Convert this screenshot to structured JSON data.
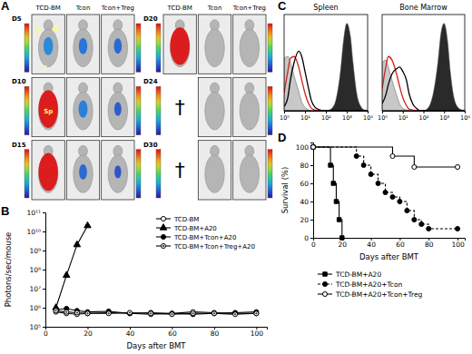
{
  "chart_data": [
    {
      "panel": "A",
      "type": "image_grid",
      "columns": [
        "TCD-BM",
        "Tcon",
        "Tcon+Treg"
      ],
      "color_range": [
        300000,
        50000000
      ],
      "rows": [
        {
          "label": "D5",
          "cells": [
            {
              "value": 1000000,
              "labels": [
                "S",
                "H",
                "F"
              ]
            },
            {
              "value": 800000
            },
            {
              "value": 700000
            }
          ]
        },
        {
          "label": "D10",
          "cells": [
            {
              "value": 50000000,
              "labels": [
                "Sp"
              ]
            },
            {
              "value": 900000
            },
            {
              "value": 600000
            }
          ]
        },
        {
          "label": "D15",
          "cells": [
            {
              "value": 2000000000
            },
            {
              "value": 700000
            },
            {
              "value": 550000
            }
          ]
        },
        {
          "label": "D20",
          "cells": [
            {
              "value": 20000000000
            },
            {
              "value": 300000
            },
            {
              "value": 300000
            }
          ]
        },
        {
          "label": "D24",
          "cells": [
            {
              "value": null,
              "label": "†"
            },
            {
              "value": 300000
            },
            {
              "value": 300000
            }
          ]
        },
        {
          "label": "D30",
          "cells": [
            {
              "value": null,
              "label": "†"
            },
            {
              "value": 300000
            },
            {
              "value": 300000
            }
          ]
        }
      ]
    },
    {
      "panel": "B",
      "type": "line",
      "log": "y",
      "legend": "top-right",
      "xlabel": "Days after BMT",
      "ylabel": "Photons/sec/mouse",
      "xlim": [
        0,
        105
      ],
      "xticks": [
        0,
        20,
        40,
        60,
        80,
        100
      ],
      "ylim": [
        100000,
        100000000000
      ],
      "yticks": [
        {
          "value": 100000,
          "label": "10⁵"
        },
        {
          "value": 1000000,
          "label": "10⁶"
        },
        {
          "value": 10000000,
          "label": "10⁷"
        },
        {
          "value": 100000000,
          "label": "10⁸"
        },
        {
          "value": 1000000000,
          "label": "10⁹"
        },
        {
          "value": 10000000000,
          "label": "10¹⁰"
        },
        {
          "value": 100000000000,
          "label": "10¹¹"
        }
      ],
      "series": [
        {
          "name": "TCD-BM",
          "color": "#000000",
          "marker": "circle-open",
          "line_style": "solid",
          "x": [
            5,
            10,
            15,
            20,
            30,
            40,
            50,
            60,
            70,
            80,
            90,
            100
          ],
          "values": [
            600000,
            500000,
            450000,
            500000,
            550000,
            500000,
            450000,
            500000,
            600000,
            550000,
            500000,
            500000
          ]
        },
        {
          "name": "TCD-BM+A20",
          "color": "#000000",
          "marker": "triangle",
          "line_style": "solid",
          "x": [
            5,
            10,
            15,
            20
          ],
          "values": [
            1000000,
            50000000,
            2000000000,
            20000000000
          ]
        },
        {
          "name": "TCD-BM+Tcon+A20",
          "color": "#000000",
          "marker": "circle",
          "line_style": "solid",
          "x": [
            5,
            10,
            15,
            20,
            30,
            40,
            50,
            60,
            70,
            80,
            90,
            100
          ],
          "values": [
            800000,
            900000,
            700000,
            600000,
            650000,
            500000,
            550000,
            500000,
            450000,
            500000,
            550000,
            600000
          ]
        },
        {
          "name": "TCD-BM+Tcon+Treg+A20",
          "color": "#000000",
          "marker": "circle-dot",
          "line_style": "solid",
          "x": [
            5,
            10,
            15,
            20,
            30,
            40,
            50,
            60,
            70,
            80,
            90,
            100
          ],
          "values": [
            700000,
            600000,
            550000,
            500000,
            500000,
            550000,
            500000,
            450000,
            500000,
            500000,
            450000,
            500000
          ]
        }
      ]
    },
    {
      "panel": "C",
      "type": "density",
      "title": "Spleen",
      "log": "x",
      "tick_labels": "x",
      "x": [
        1,
        1.5,
        2,
        3,
        5,
        7,
        10,
        15,
        20,
        30,
        50,
        70,
        100,
        150,
        200,
        300,
        500,
        700,
        1000,
        1500,
        2000,
        3000,
        5000,
        7000,
        10000
      ],
      "xlim": [
        1,
        10000
      ],
      "xticks": [
        {
          "value": 1,
          "label": "10⁰"
        },
        {
          "value": 10,
          "label": "10¹"
        },
        {
          "value": 100,
          "label": "10²"
        },
        {
          "value": 1000,
          "label": "10³"
        },
        {
          "value": 10000,
          "label": "10⁴"
        }
      ],
      "ylim": [
        0,
        110
      ],
      "series": [
        {
          "type": "area",
          "color": "#c8c8c8",
          "values": [
            60,
            62,
            55,
            40,
            22,
            10,
            4,
            1,
            0,
            0,
            0,
            0,
            0,
            0,
            0,
            0,
            0,
            0,
            0,
            0,
            0,
            0,
            0,
            0,
            0
          ]
        },
        {
          "type": "area",
          "color": "#2a2a2a",
          "values": [
            0,
            0,
            0,
            0,
            0,
            0,
            0,
            0,
            0,
            0,
            0,
            0,
            0,
            1,
            3,
            12,
            45,
            80,
            100,
            85,
            55,
            20,
            4,
            1,
            0
          ]
        },
        {
          "type": "line",
          "color": "#d42020",
          "values": [
            20,
            45,
            60,
            62,
            50,
            35,
            20,
            8,
            3,
            1,
            0,
            0,
            0,
            0,
            0,
            0,
            0,
            0,
            0,
            0,
            0,
            0,
            0,
            0,
            0
          ]
        },
        {
          "type": "line",
          "color": "#000000",
          "values": [
            5,
            15,
            35,
            55,
            68,
            62,
            45,
            25,
            12,
            4,
            1,
            0,
            0,
            0,
            0,
            0,
            0,
            0,
            0,
            0,
            0,
            0,
            0,
            0,
            0
          ]
        }
      ]
    },
    {
      "type": "density",
      "title": "Bone Marrow",
      "log": "x",
      "tick_labels": "x",
      "x": [
        1,
        1.5,
        2,
        3,
        5,
        7,
        10,
        15,
        20,
        30,
        50,
        70,
        100,
        150,
        200,
        300,
        500,
        700,
        1000,
        1500,
        2000,
        3000,
        5000,
        7000,
        10000
      ],
      "xlim": [
        1,
        10000
      ],
      "xticks": [
        {
          "value": 1,
          "label": "10⁰"
        },
        {
          "value": 10,
          "label": "10¹"
        },
        {
          "value": 100,
          "label": "10²"
        },
        {
          "value": 1000,
          "label": "10³"
        },
        {
          "value": 10000,
          "label": "10⁴"
        }
      ],
      "ylim": [
        0,
        110
      ],
      "series": [
        {
          "type": "area",
          "color": "#c8c8c8",
          "values": [
            55,
            58,
            50,
            35,
            18,
            8,
            3,
            1,
            0,
            0,
            0,
            0,
            0,
            0,
            0,
            0,
            0,
            0,
            0,
            0,
            0,
            0,
            0,
            0,
            0
          ]
        },
        {
          "type": "area",
          "color": "#2a2a2a",
          "values": [
            0,
            0,
            0,
            0,
            0,
            0,
            0,
            0,
            0,
            0,
            0,
            0,
            0,
            2,
            6,
            20,
            55,
            88,
            100,
            78,
            45,
            15,
            3,
            1,
            0
          ]
        },
        {
          "type": "line",
          "color": "#d42020",
          "values": [
            25,
            50,
            62,
            58,
            42,
            28,
            15,
            6,
            2,
            1,
            0,
            0,
            0,
            0,
            0,
            0,
            0,
            0,
            0,
            0,
            0,
            0,
            0,
            0,
            0
          ]
        },
        {
          "type": "line",
          "color": "#000000",
          "values": [
            8,
            18,
            30,
            42,
            48,
            50,
            45,
            35,
            20,
            8,
            2,
            0,
            0,
            0,
            0,
            0,
            0,
            0,
            0,
            0,
            0,
            0,
            0,
            0,
            0
          ]
        }
      ]
    },
    {
      "panel": "D",
      "type": "step",
      "legend": "bottom",
      "xlabel": "Days after BMT",
      "ylabel": "Survival (%)",
      "xlim": [
        0,
        105
      ],
      "xticks": [
        0,
        20,
        40,
        60,
        80,
        100
      ],
      "ylim": [
        0,
        105
      ],
      "yticks": [
        0,
        20,
        40,
        60,
        80,
        100
      ],
      "series": [
        {
          "name": "TCD-BM+A20",
          "color": "#000000",
          "marker": "square",
          "line_style": "solid",
          "x": [
            0,
            12,
            14,
            16,
            18,
            20
          ],
          "values": [
            100,
            80,
            60,
            40,
            20,
            0
          ]
        },
        {
          "name": "TCD-BM+A20+Tcon",
          "color": "#000000",
          "marker": "circle",
          "line_style": "dashed",
          "x": [
            0,
            30,
            35,
            40,
            45,
            50,
            55,
            60,
            65,
            70,
            75,
            80,
            100
          ],
          "values": [
            100,
            90,
            80,
            70,
            60,
            50,
            45,
            40,
            30,
            20,
            15,
            10,
            10
          ]
        },
        {
          "name": "TCD-BM+A20+Tcon+Treg",
          "color": "#000000",
          "marker": "circle-open",
          "line_style": "solid",
          "x": [
            0,
            55,
            70,
            100
          ],
          "values": [
            100,
            90,
            78,
            78
          ]
        }
      ]
    }
  ]
}
